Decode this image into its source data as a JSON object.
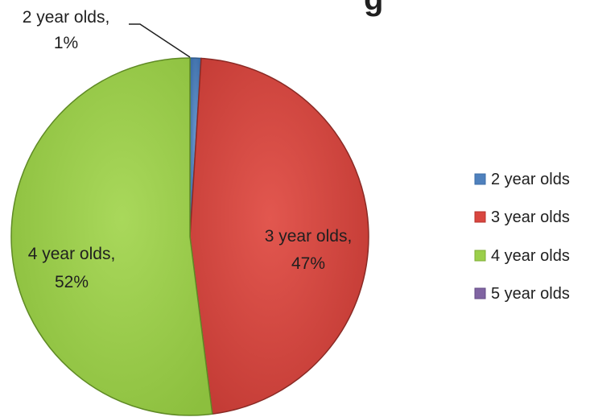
{
  "chart_data": {
    "type": "pie",
    "title": "",
    "categories": [
      "2 year olds",
      "3 year olds",
      "4 year olds",
      "5 year olds"
    ],
    "values": [
      1,
      47,
      52,
      0
    ],
    "colors": [
      "#4f81bd",
      "#d9463f",
      "#9bcf4a",
      "#8064a2"
    ],
    "data_labels": [
      {
        "line1": "2 year olds,",
        "line2": "1%"
      },
      {
        "line1": "3 year olds,",
        "line2": "47%"
      },
      {
        "line1": "4 year olds,",
        "line2": "52%"
      },
      null
    ],
    "legend": {
      "placement": "right",
      "entries": [
        "2 year olds",
        "3 year olds",
        "4 year olds",
        "5 year olds"
      ]
    },
    "title_fragment": "g"
  }
}
